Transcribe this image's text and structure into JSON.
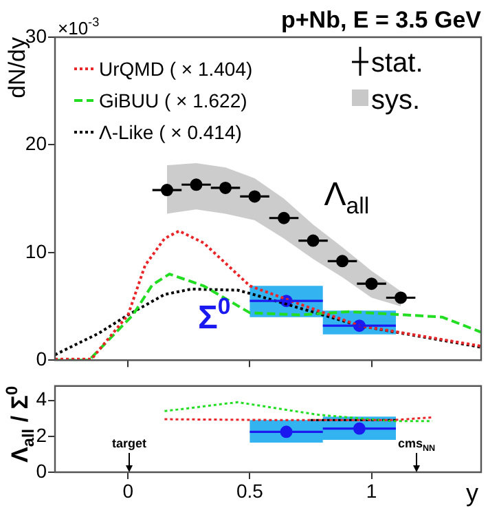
{
  "chart_data": [
    {
      "type": "line",
      "title": "p+Nb, E = 3.5 GeV",
      "ylabel": "dN/dy",
      "annotations": [
        "×10$^{-3}$",
        "stat.",
        "sys."
      ],
      "xlim": [
        -0.3,
        1.45
      ],
      "xticks": [
        0,
        0.5,
        1
      ],
      "ylim": [
        0,
        30
      ],
      "yticks": [
        0,
        10,
        20,
        30
      ],
      "tick_labels": "y",
      "grid": false,
      "legend": "top left",
      "series": [
        {
          "name": "UrQMD ( × 1.404)",
          "type": "line",
          "line_style": "dotted",
          "color": "#e8262a",
          "x": [
            -0.3,
            -0.15,
            0.0,
            0.07,
            0.15,
            0.21,
            0.31,
            0.41,
            0.5,
            0.73,
            0.95,
            1.19,
            1.45
          ],
          "values": [
            0.1,
            0.1,
            4.2,
            8.8,
            11.3,
            12.0,
            10.9,
            8.8,
            6.9,
            5.0,
            3.2,
            2.3,
            1.3
          ]
        },
        {
          "name": "GiBUU ( × 1.622)",
          "type": "line",
          "line_style": "dashed",
          "color": "#22dd22",
          "x": [
            -0.3,
            -0.16,
            0.02,
            0.1,
            0.17,
            0.31,
            0.5,
            0.7,
            0.91,
            1.29,
            1.45
          ],
          "values": [
            0.0,
            0.0,
            4.2,
            7.0,
            8.0,
            6.9,
            4.4,
            4.2,
            4.5,
            4.0,
            2.6
          ]
        },
        {
          "name": "Λ-Like ( × 0.414)",
          "type": "line",
          "line_style": "dotted",
          "color": "#000000",
          "x": [
            -0.3,
            -0.12,
            0.0,
            0.15,
            0.26,
            0.45,
            0.5,
            0.95,
            1.45
          ],
          "values": [
            0.5,
            2.5,
            4.2,
            6.1,
            6.6,
            6.5,
            6.2,
            3.2,
            1.2
          ]
        },
        {
          "name": "Λ$_{all}$",
          "type": "scatter",
          "marker": "circle",
          "color": "#000000",
          "x": [
            0.16,
            0.28,
            0.4,
            0.52,
            0.64,
            0.76,
            0.88,
            1.0,
            1.12
          ],
          "values": [
            15.8,
            16.3,
            16.0,
            15.2,
            13.2,
            11.1,
            9.2,
            7.1,
            5.8
          ],
          "xerrors": [
            0.06,
            0.06,
            0.06,
            0.06,
            0.06,
            0.06,
            0.06,
            0.06,
            0.06
          ],
          "lower": [
            13.6,
            14.0,
            13.6,
            13.0,
            11.3,
            9.4,
            7.7,
            5.8,
            5.0
          ],
          "upper": [
            18.1,
            18.3,
            17.9,
            16.9,
            15.0,
            12.6,
            10.5,
            8.3,
            6.4
          ]
        },
        {
          "type": "line",
          "color": "#33b4f0",
          "x": [
            0.5,
            0.8,
            0.8,
            1.1
          ],
          "values": [
            null,
            null,
            null,
            null
          ],
          "lower": [
            4.0,
            4.0,
            2.4,
            2.4
          ],
          "upper": [
            6.9,
            6.9,
            4.6,
            4.6
          ]
        },
        {
          "name": "Σ$^{0}$",
          "type": "scatter",
          "marker": "circle",
          "color": "#1a1af0",
          "x": [
            0.65,
            0.95
          ],
          "values": [
            5.5,
            3.2
          ],
          "xerrors": [
            [
              0.5,
              0.8
            ],
            [
              0.8,
              1.1
            ]
          ]
        }
      ]
    },
    {
      "type": "line",
      "ylabel": "Λ$_{all}$ / Σ$^{0}$",
      "xlabel": "y",
      "annotations": [
        "target",
        "cms$_{NN}$"
      ],
      "xlim": [
        -0.3,
        1.45
      ],
      "xticks": [
        0,
        0.5,
        1
      ],
      "ylim": [
        0,
        4.8
      ],
      "yticks": [
        0,
        2,
        4
      ],
      "grid": false,
      "series": [
        {
          "type": "line",
          "color": "#33b4f0",
          "x": [
            0.5,
            0.8,
            0.8,
            1.1
          ],
          "values": [
            null,
            null,
            null,
            null
          ],
          "lower": [
            1.65,
            1.65,
            1.8,
            1.8
          ],
          "upper": [
            2.9,
            2.9,
            3.1,
            3.1
          ]
        },
        {
          "type": "scatter",
          "marker": "circle",
          "color": "#1a1af0",
          "x": [
            0.65,
            0.95
          ],
          "values": [
            2.25,
            2.43
          ],
          "errors": [
            0.2,
            0.2
          ],
          "xerrors": [
            [
              0.5,
              0.8
            ],
            [
              0.8,
              1.1
            ]
          ]
        },
        {
          "type": "line",
          "line_style": "dotted",
          "color": "#e8262a",
          "x": [
            0.15,
            0.67,
            1.08,
            1.25
          ],
          "values": [
            2.95,
            2.9,
            2.9,
            3.05
          ]
        },
        {
          "type": "line",
          "line_style": "dotted",
          "color": "#22dd22",
          "x": [
            0.15,
            0.45,
            0.78,
            1.08,
            1.25
          ],
          "values": [
            3.4,
            3.9,
            3.2,
            2.85,
            2.85
          ]
        },
        {
          "type": "line",
          "line_style": "dotted",
          "color": "#000000",
          "x": [
            0.75,
            1.1
          ],
          "values": [
            2.9,
            2.9
          ]
        }
      ]
    }
  ]
}
